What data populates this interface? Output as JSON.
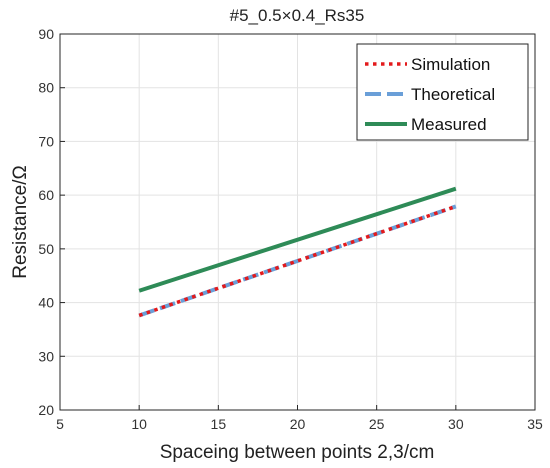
{
  "chart_data": {
    "type": "line",
    "title": "#5_0.5×0.4_Rs35",
    "xlabel": "Spaceing between points 2,3/cm",
    "ylabel": "Resistance/Ω",
    "xlim": [
      5,
      35
    ],
    "ylim": [
      20,
      90
    ],
    "xticks": [
      5,
      10,
      15,
      20,
      25,
      30,
      35
    ],
    "yticks": [
      20,
      30,
      40,
      50,
      60,
      70,
      80,
      90
    ],
    "grid": true,
    "legend_position": "top-right",
    "series": [
      {
        "name": "Simulation",
        "x": [
          10,
          30
        ],
        "y": [
          37.6,
          57.9
        ],
        "color": "#e31a1c",
        "style": "dotted"
      },
      {
        "name": "Theoretical",
        "x": [
          10,
          30
        ],
        "y": [
          37.6,
          57.9
        ],
        "color": "#6a9fd8",
        "style": "dashed"
      },
      {
        "name": "Measured",
        "x": [
          10,
          30
        ],
        "y": [
          42.2,
          61.2
        ],
        "color": "#2e8b57",
        "style": "solid"
      }
    ]
  }
}
